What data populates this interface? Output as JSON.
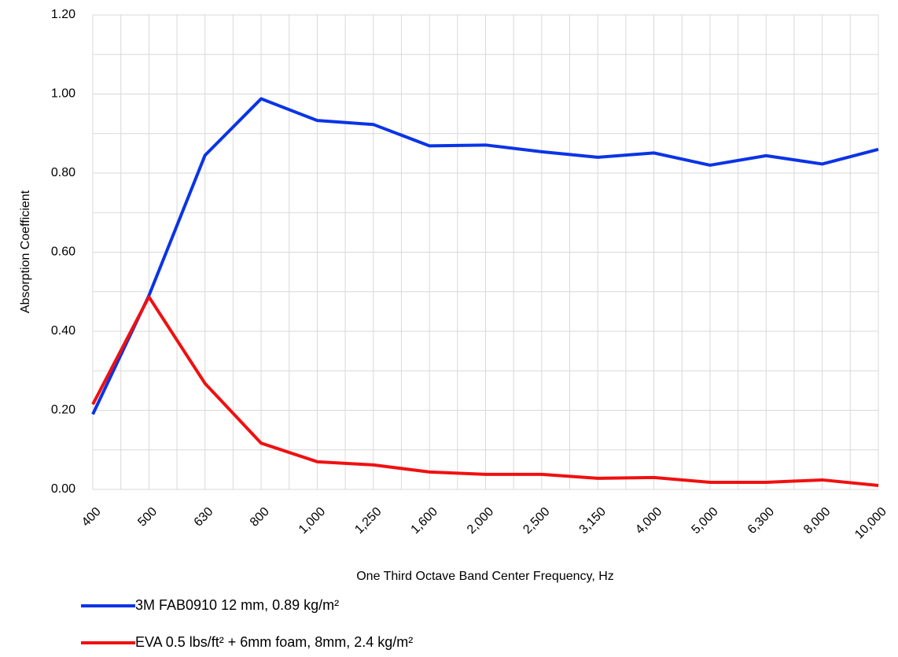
{
  "chart_data": {
    "type": "line",
    "x_label": "One Third Octave Band Center Frequency, Hz",
    "y_label": "Absorption Coefficient",
    "categories": [
      "400",
      "500",
      "630",
      "800",
      "1,000",
      "1,250",
      "1,600",
      "2,000",
      "2,500",
      "3,150",
      "4,000",
      "5,000",
      "6,300",
      "8,000",
      "10,000"
    ],
    "series": [
      {
        "name": "3M FAB0910 12 mm, 0.89 kg/m²",
        "color": "#0a34e6",
        "values": [
          0.19,
          0.49,
          0.845,
          0.988,
          0.933,
          0.923,
          0.869,
          0.871,
          0.854,
          0.84,
          0.851,
          0.82,
          0.844,
          0.823,
          0.86
        ]
      },
      {
        "name": "EVA 0.5 lbs/ft² + 6mm foam, 8mm, 2.4 kg/m²",
        "color": "#f01010",
        "values": [
          0.215,
          0.487,
          0.268,
          0.117,
          0.07,
          0.062,
          0.044,
          0.038,
          0.038,
          0.028,
          0.03,
          0.018,
          0.018,
          0.024,
          0.01
        ]
      }
    ],
    "ylim": [
      0,
      1.2
    ],
    "yticks": [
      {
        "value": 0,
        "label": "0.00"
      },
      {
        "value": 0.2,
        "label": "0.20"
      },
      {
        "value": 0.4,
        "label": "0.40"
      },
      {
        "value": 0.6,
        "label": "0.60"
      },
      {
        "value": 0.8,
        "label": "0.80"
      },
      {
        "value": 1,
        "label": "1.00"
      },
      {
        "value": 1.2,
        "label": "1.20"
      }
    ],
    "grid": true,
    "legend": "bottom"
  }
}
